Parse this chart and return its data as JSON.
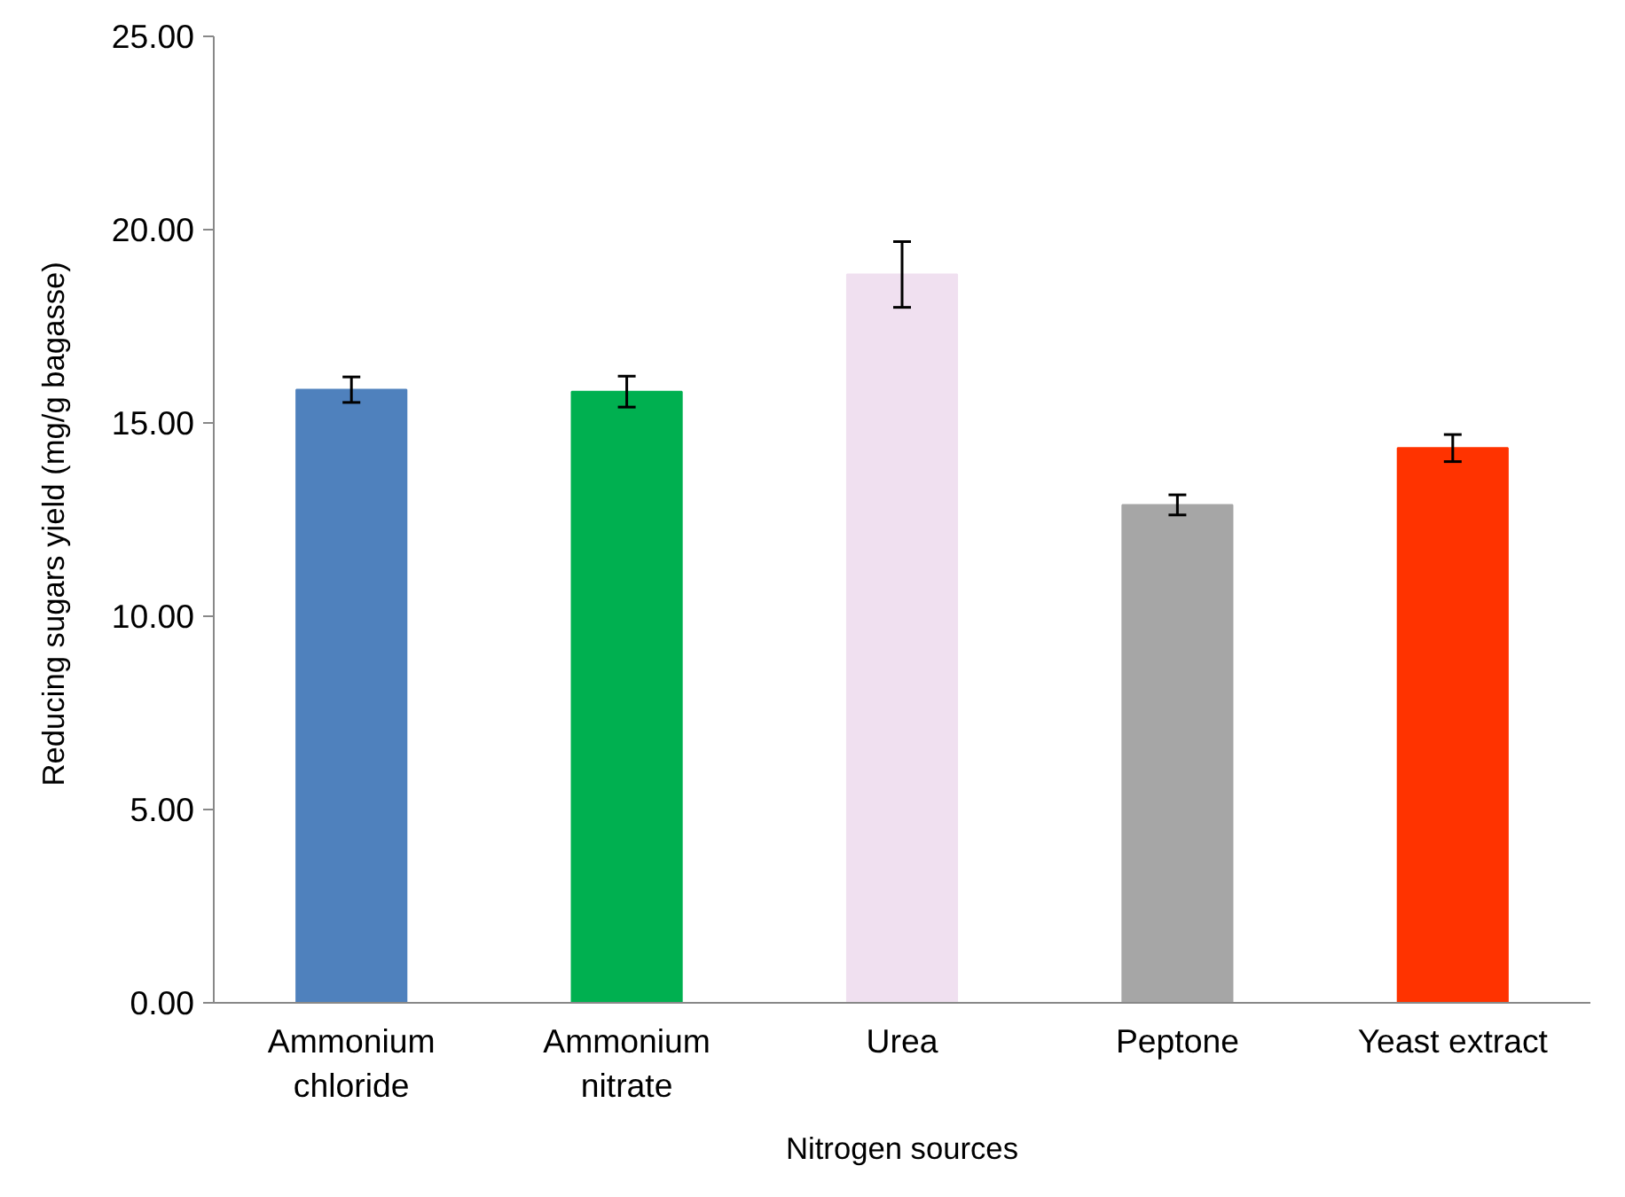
{
  "chart_data": {
    "type": "bar",
    "xlabel": "Nitrogen sources",
    "ylabel": "Reducing sugars yield  (mg/g bagasse)",
    "categories": [
      "Ammonium\nchloride",
      "Ammonium\nnitrate",
      "Urea",
      "Peptone",
      "Yeast extract"
    ],
    "values": [
      15.86,
      15.81,
      18.84,
      12.88,
      14.35
    ],
    "colors": [
      "#4f81bd",
      "#00b050",
      "#f0e0f0",
      "#a6a6a6",
      "#ff3300"
    ],
    "errors": [
      0.33,
      0.4,
      0.85,
      0.26,
      0.35
    ],
    "ylim": [
      0,
      25
    ],
    "yticks": [
      {
        "value": 0,
        "label": "0.00"
      },
      {
        "value": 5,
        "label": "5.00"
      },
      {
        "value": 10,
        "label": "10.00"
      },
      {
        "value": 15,
        "label": "15.00"
      },
      {
        "value": 20,
        "label": "20.00"
      },
      {
        "value": 25,
        "label": "25.00"
      }
    ],
    "grid": false
  }
}
